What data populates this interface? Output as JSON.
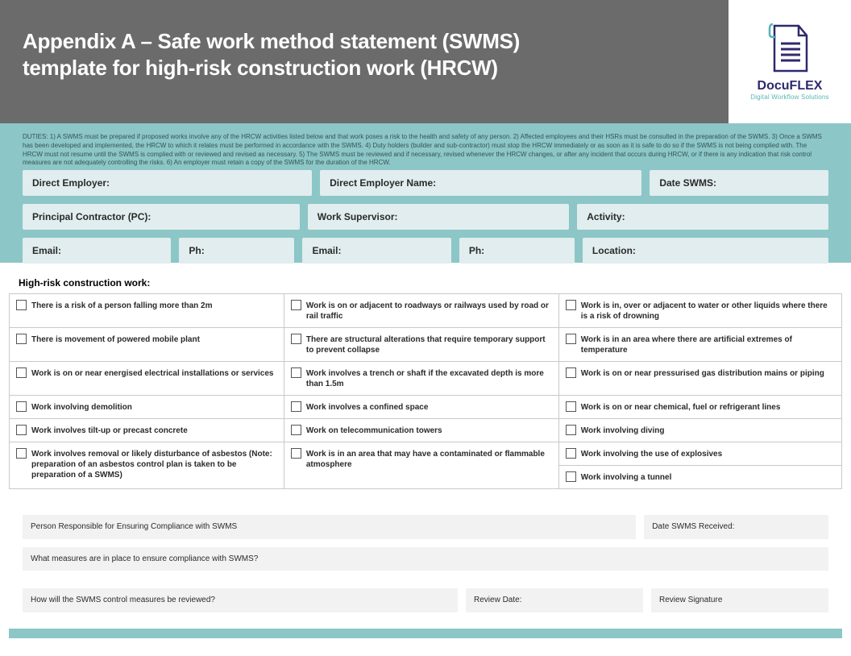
{
  "colors": {
    "header_bg": "#6b6b6b",
    "band_bg": "#8cc6c6",
    "field_bg": "#e1edee",
    "bottom_field_bg": "#f2f2f2",
    "table_border": "#c9c9c9",
    "title_color": "#ffffff",
    "logo_primary": "#2d2a6e",
    "logo_accent": "#58b5b5"
  },
  "header": {
    "title_line1": "Appendix A – Safe work method statement (SWMS)",
    "title_line2": "template for high-risk construction work (HRCW)"
  },
  "logo": {
    "name": "DocuFLEX",
    "tagline": "Digital Workflow Solutions"
  },
  "duties": "DUTIES: 1) A SWMS must be prepared if proposed works involve any of the HRCW activities listed below and that work poses a risk to the health and safety of any person. 2) Affected employees and their HSRs must be consulted in the preparation of the SWMS. 3) Once a SWMS has been developed and implemented, the HRCW to which it relates must be performed in accordance with the SWMS. 4) Duty holders (builder and sub-contractor) must stop the HRCW immediately or as soon as it is safe to do so if the SWMS is not being complied with. The HRCW must not resume until the SWMS is complied with or reviewed and revised as necessary. 5) The SWMS must be reviewed and if necessary, revised whenever the HRCW changes, or after any incident that occurs during HRCW, or if there is any indication that risk control measures are not adequately controlling the risks. 6) An employer must retain a copy of the SWMS for the duration of the HRCW.",
  "fields": {
    "row1": [
      {
        "label": "Direct Employer:",
        "flex": 1
      },
      {
        "label": "Direct Employer Name:",
        "flex": 1.12
      },
      {
        "label": "Date SWMS:",
        "flex": 0.59
      }
    ],
    "row2": [
      {
        "label": "Principal Contractor (PC):",
        "flex": 1
      },
      {
        "label": "Work Supervisor:",
        "flex": 0.94
      },
      {
        "label": "Activity:",
        "flex": 0.9
      }
    ],
    "row3": [
      {
        "label": "Email:",
        "flex": 0.97
      },
      {
        "label": "Ph:",
        "flex": 0.72
      },
      {
        "label": "Email:",
        "flex": 0.97
      },
      {
        "label": "Ph:",
        "flex": 0.72
      },
      {
        "label": "Location:",
        "flex": 1.7
      }
    ]
  },
  "hrcw": {
    "heading": "High-risk construction work:",
    "col_widths": [
      "33%",
      "33%",
      "34%"
    ],
    "rows": [
      [
        "There is a risk of a person falling more than 2m",
        "Work is on or adjacent to roadways or railways used by road or rail traffic",
        "Work is in, over or adjacent to water or other liquids where there is  a risk of drowning"
      ],
      [
        "There is movement of powered mobile plant",
        "There are structural alterations that require temporary support to prevent collapse",
        "Work is in an area where there are artificial extremes of temperature"
      ],
      [
        "Work is on or near energised electrical installations or services",
        "Work involves a trench or shaft if the excavated depth is  more than 1.5m",
        "Work is on or near pressurised gas distribution mains or piping"
      ],
      [
        "Work involving demolition",
        "Work involves a confined space",
        "Work is on or near chemical, fuel or refrigerant lines"
      ],
      [
        "Work involves tilt-up or precast concrete",
        "Work on telecommunication towers",
        "Work involving diving"
      ],
      [
        "Work involves removal or likely disturbance of asbestos (Note: preparation  of an asbestos control plan is taken to be preparation of a SWMS)",
        "Work is in an area that may have a contaminated or flammable atmosphere",
        "Work involving the use of explosives"
      ],
      [
        null,
        null,
        "Work involving a tunnel"
      ]
    ],
    "rowspans": {
      "5": {
        "0": 2,
        "1": 2
      }
    }
  },
  "bottom": {
    "r1": [
      {
        "label": "Person Responsible for Ensuring Compliance with SWMS",
        "flex": 3.55
      },
      {
        "label": "Date SWMS Received:",
        "flex": 1
      }
    ],
    "r2": [
      {
        "label": "What measures are in place to ensure compliance with SWMS?",
        "flex": 1
      }
    ],
    "r3": [
      {
        "label": "How will the SWMS control measures be reviewed?",
        "flex": 2.6
      },
      {
        "label": "Review Date:",
        "flex": 1
      },
      {
        "label": "Review Signature",
        "flex": 1
      }
    ]
  }
}
